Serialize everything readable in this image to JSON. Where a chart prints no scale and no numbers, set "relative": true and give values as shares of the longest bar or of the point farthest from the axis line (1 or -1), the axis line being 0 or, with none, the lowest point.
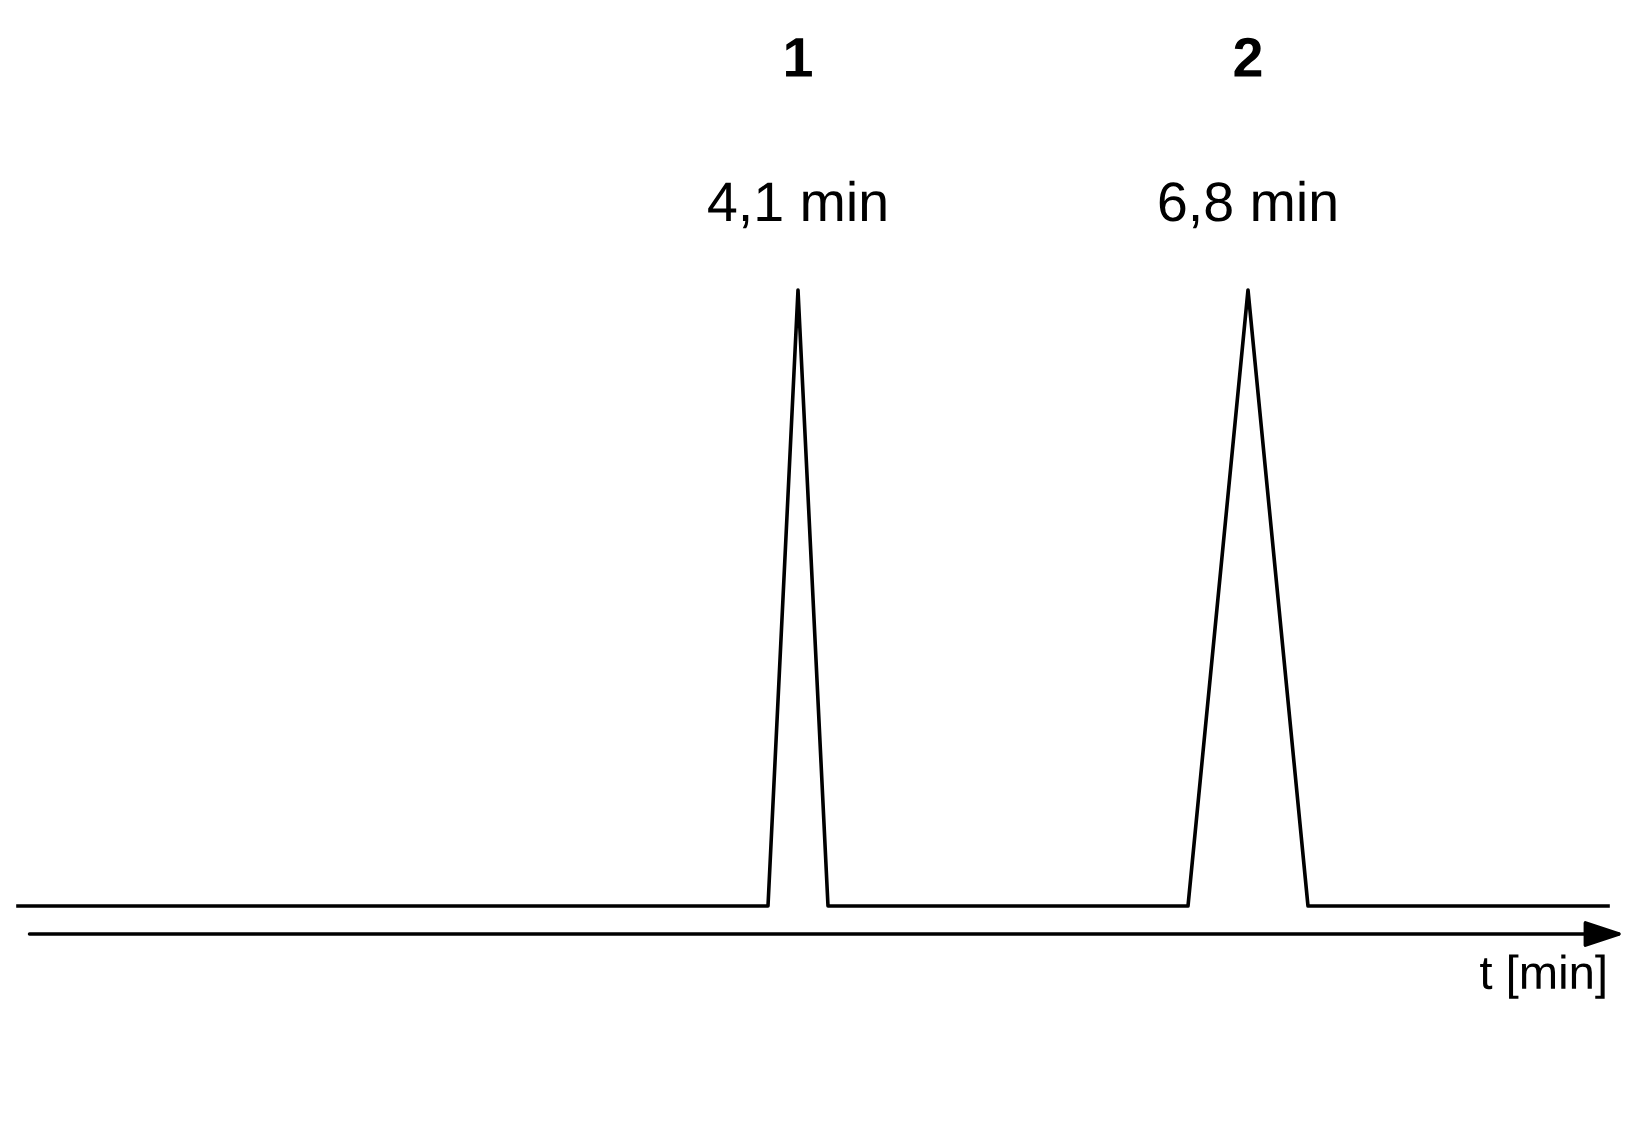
{
  "chart_data": {
    "type": "line",
    "relative": true,
    "xlabel": "t [min]",
    "categories": [
      null,
      null,
      null,
      null,
      null,
      null,
      null,
      null,
      null,
      null,
      null,
      null,
      null,
      null,
      null,
      null,
      null,
      null,
      null,
      null,
      null,
      null,
      null,
      null,
      null,
      null,
      null,
      null,
      null,
      null,
      null,
      null,
      null,
      null,
      null,
      null,
      null,
      null,
      null,
      null,
      null,
      null,
      null,
      null,
      null,
      null,
      null,
      null,
      null,
      null,
      null,
      null,
      null,
      null
    ],
    "series": [
      {
        "color": "#000000",
        "values": [
          0,
          0,
          0,
          0,
          0,
          0,
          0,
          0,
          0,
          0,
          0,
          0,
          0,
          0,
          0,
          0,
          0,
          0,
          0,
          0,
          0,
          0,
          0,
          0,
          0,
          0,
          1,
          0,
          0,
          0,
          0,
          0,
          0,
          0,
          0,
          0,
          0,
          0,
          0,
          0,
          0.5,
          1,
          0.5,
          0,
          0,
          0,
          0,
          0,
          0,
          0,
          0,
          0,
          0,
          0
        ]
      }
    ],
    "line_style": "solid",
    "annotations": [
      "4,1 min",
      "6,8 min",
      "1",
      "2"
    ]
  }
}
